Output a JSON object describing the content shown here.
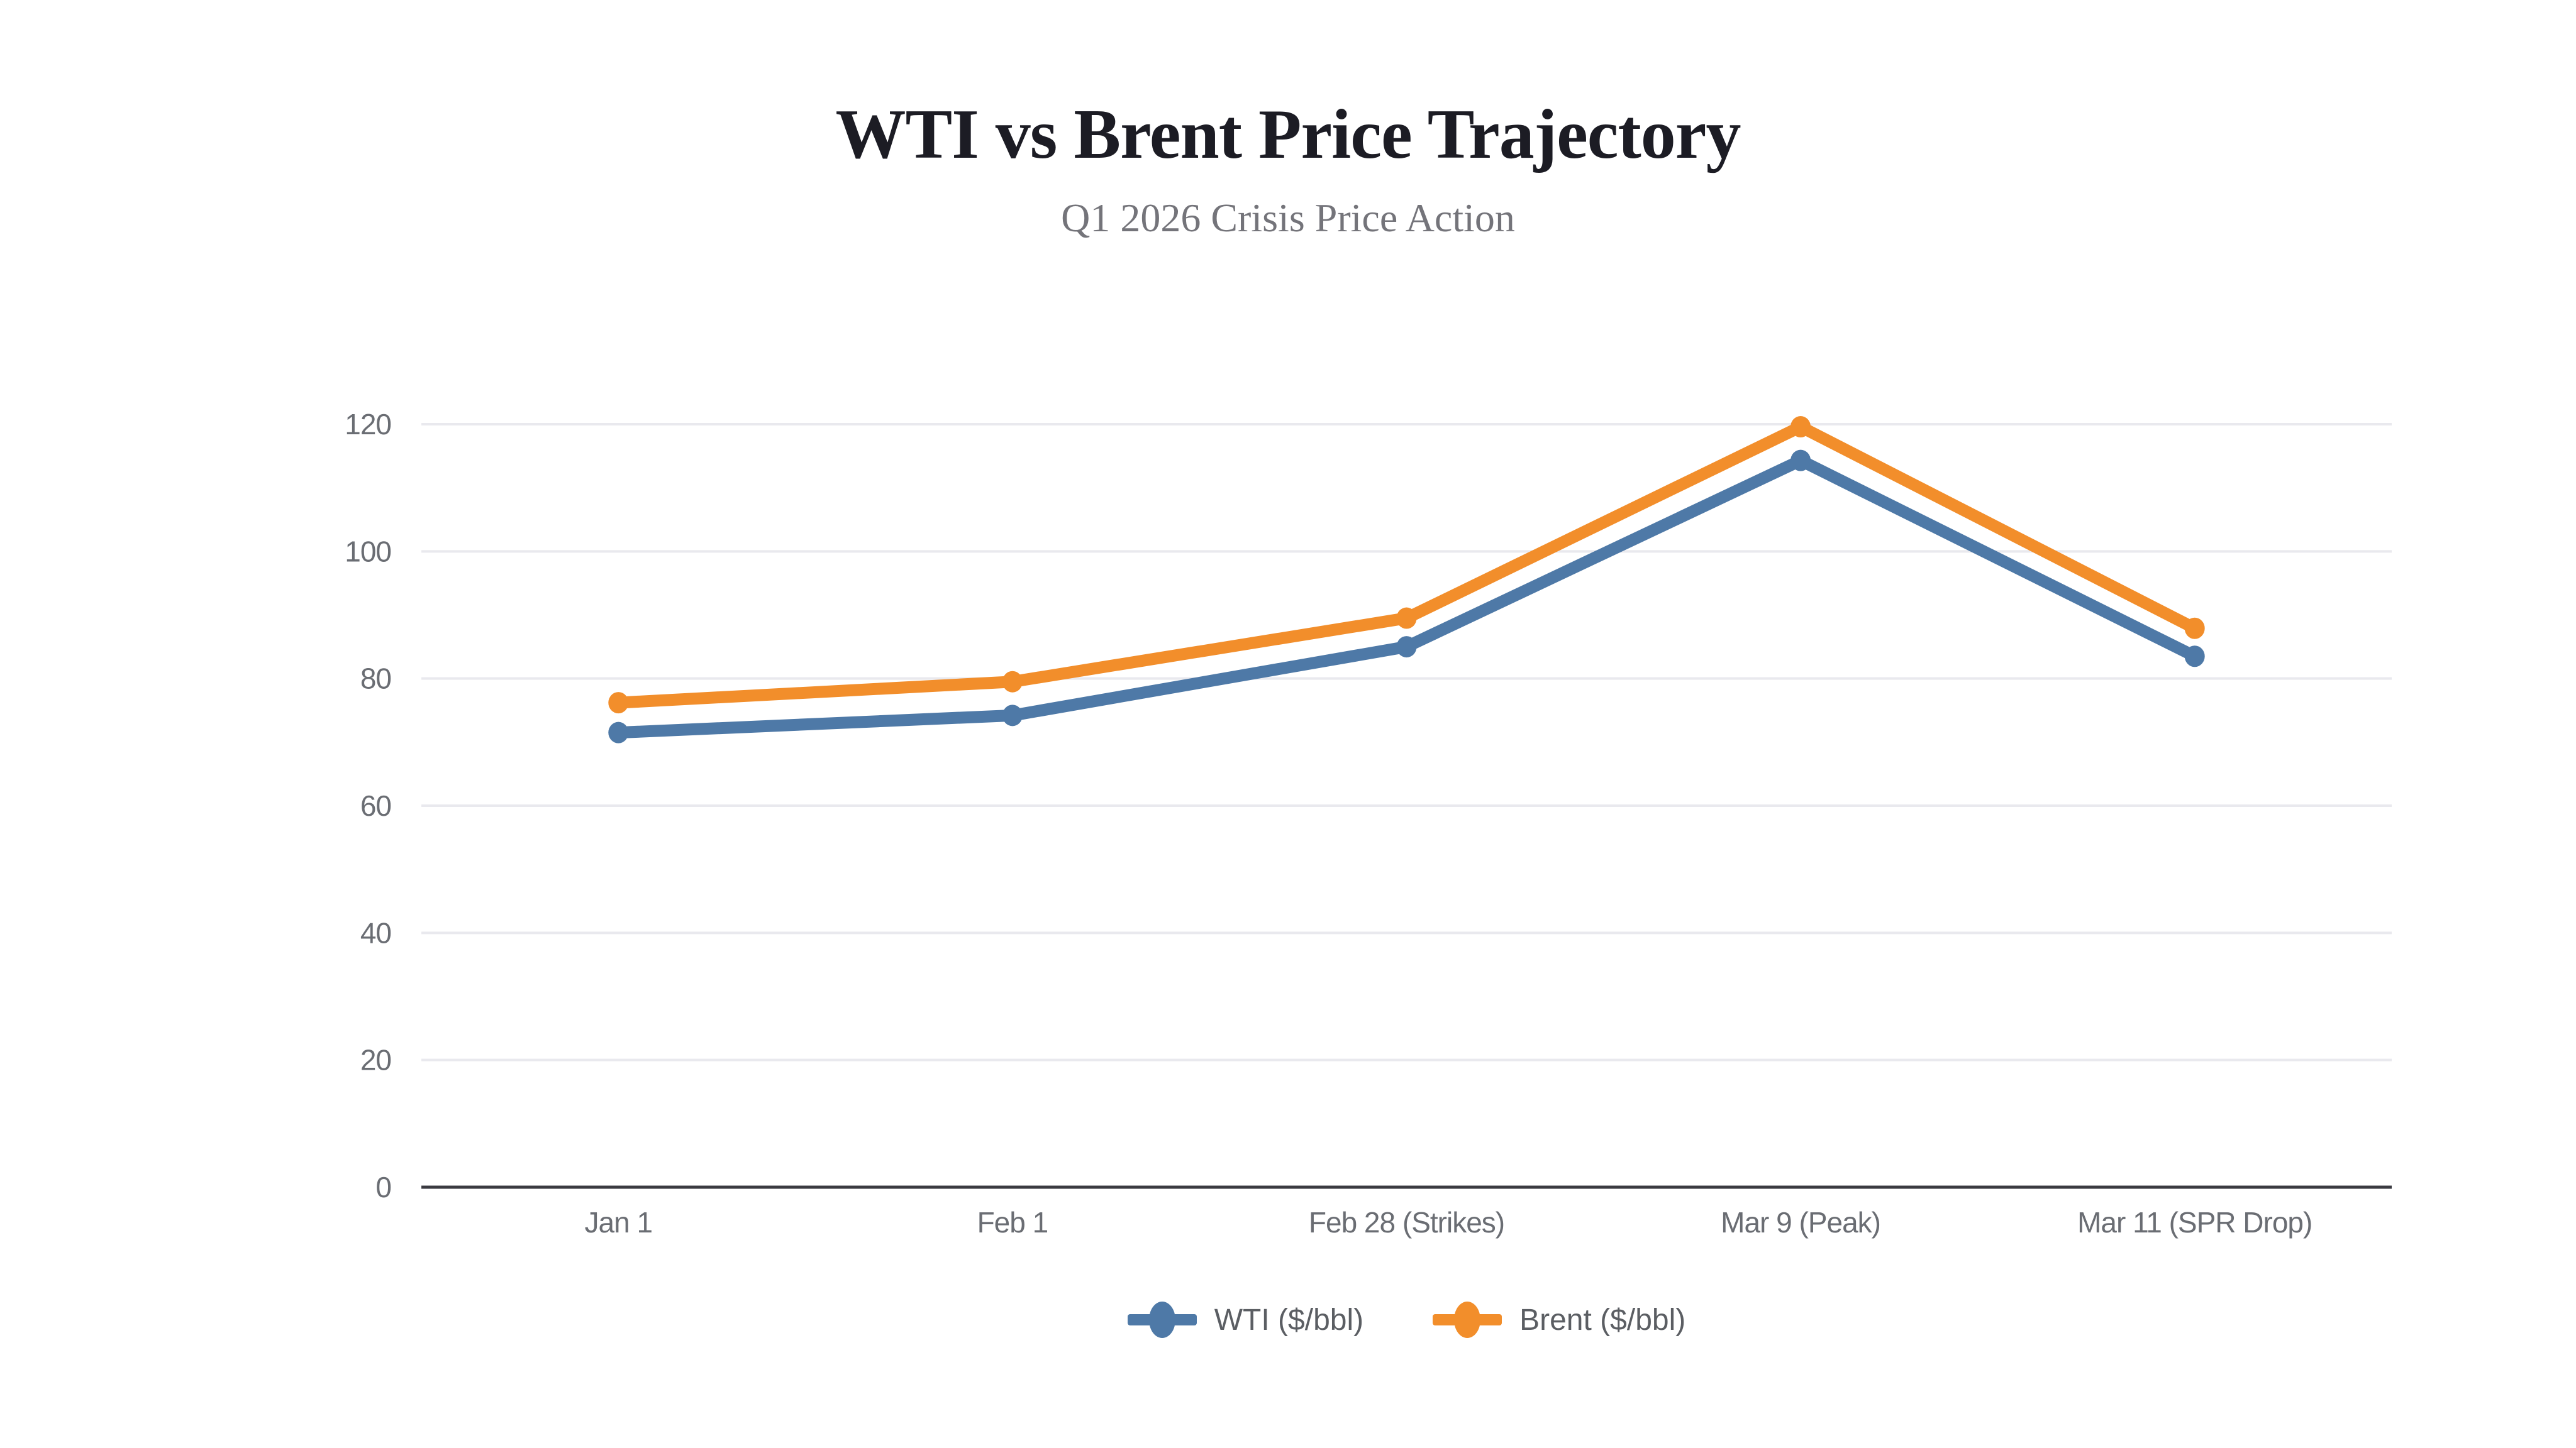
{
  "header": {
    "title": "WTI vs Brent Price Trajectory",
    "subtitle": "Q1 2026 Crisis Price Action"
  },
  "chart_data": {
    "type": "line",
    "title": "WTI vs Brent Price Trajectory",
    "subtitle": "Q1 2026 Crisis Price Action",
    "categories": [
      "Jan 1",
      "Feb 1",
      "Feb 28 (Strikes)",
      "Mar 9 (Peak)",
      "Mar 11 (SPR Drop)"
    ],
    "series": [
      {
        "name": "WTI ($/bbl)",
        "color": "#4E79A7",
        "values": [
          71.5,
          74.2,
          85.0,
          114.3,
          83.5
        ]
      },
      {
        "name": "Brent ($/bbl)",
        "color": "#F28E2B",
        "values": [
          76.2,
          79.5,
          89.5,
          119.6,
          87.9
        ]
      }
    ],
    "xlabel": "",
    "ylabel": "",
    "ylim": [
      0,
      120
    ],
    "y_ticks": [
      0,
      20,
      40,
      60,
      80,
      100,
      120
    ],
    "grid": true,
    "legend_position": "bottom"
  },
  "colors": {
    "background": "#ffffff",
    "grid_line": "#e9e9ee",
    "axis_line": "#3a3a40",
    "tick_text": "#6a6d73",
    "legend_text": "#5b5e63",
    "title_text": "#1c1c24",
    "subtitle_text": "#74747a"
  }
}
